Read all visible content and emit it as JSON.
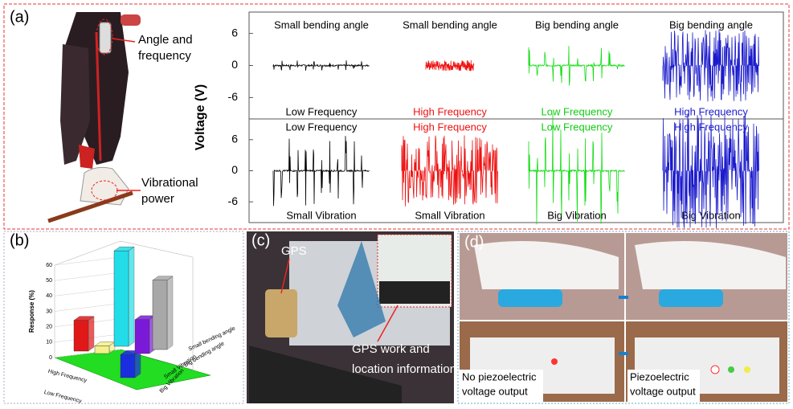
{
  "panel_a": {
    "label": "(a)",
    "annotation_top": [
      "Angle and",
      "frequency"
    ],
    "annotation_bottom": [
      "Vibrational",
      "power"
    ],
    "y_label": "Voltage (V)",
    "ylim": [
      -10,
      10
    ],
    "yticks": [
      6,
      0,
      -6
    ],
    "top_row": [
      {
        "title": "Small bending angle",
        "footer": "Low Frequency",
        "color": "#000000",
        "footer_color": "#000000"
      },
      {
        "title": "Small bending angle",
        "footer": "High Frequency",
        "color": "#ee1111",
        "footer_color": "#ee1111"
      },
      {
        "title": "Big bending angle",
        "footer": "Low Frequency",
        "color": "#11dd11",
        "footer_color": "#11cc11"
      },
      {
        "title": "Big  bending angle",
        "footer": "High Frequency",
        "color": "#1a1acc",
        "footer_color": "#1a1acc"
      }
    ],
    "bottom_row": [
      {
        "title": "Low Frequency",
        "footer": "Small Vibration",
        "color": "#000000",
        "title_color": "#000000"
      },
      {
        "title": "High Frequency",
        "footer": "Small Vibration",
        "color": "#ee1111",
        "title_color": "#ee1111"
      },
      {
        "title": "Low Frequency",
        "footer": "Big Vibration",
        "color": "#11dd11",
        "title_color": "#11cc11"
      },
      {
        "title": "High Frequency",
        "footer": "Big Vibration",
        "color": "#1a1acc",
        "title_color": "#1a1acc"
      }
    ]
  },
  "panel_b": {
    "label": "(b)",
    "y_label": "Response (%)",
    "ylim": [
      0,
      60
    ],
    "yticks": [
      0,
      10,
      20,
      30,
      40,
      50,
      60
    ],
    "axis_labels": [
      "High Frequency",
      "Low Frequency",
      "Big Vibration",
      "Small Vibration",
      "Big bending angle",
      "Small bending angle"
    ],
    "bars": [
      {
        "value": 20,
        "color": "#e01818"
      },
      {
        "value": 5,
        "color": "#f4f08a"
      },
      {
        "value": 62,
        "color": "#22dde8"
      },
      {
        "value": 15,
        "color": "#1a2ee0"
      },
      {
        "value": 22,
        "color": "#7a1ad8"
      },
      {
        "value": 45,
        "color": "#a8a8a8"
      }
    ]
  },
  "panel_c": {
    "label": "(c)",
    "gps": "GPS",
    "caption": [
      "GPS work and",
      "location information"
    ]
  },
  "panel_d": {
    "label": "(d)",
    "left_caption": [
      "No piezoelectric",
      "voltage output"
    ],
    "right_caption": [
      "Piezoelectric",
      "voltage output"
    ]
  }
}
